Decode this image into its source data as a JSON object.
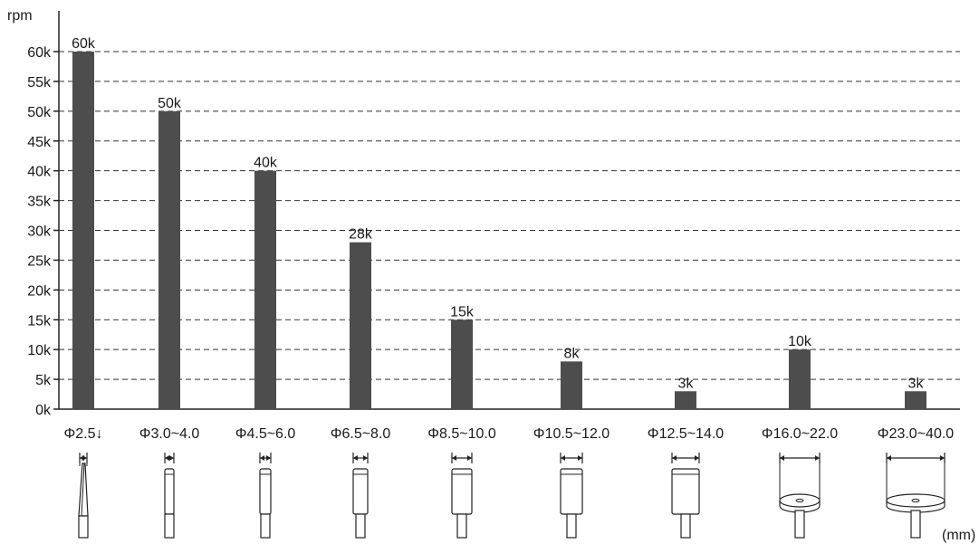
{
  "chart_data": {
    "type": "bar",
    "ylabel": "rpm",
    "xunit": "(mm)",
    "ylim": [
      0,
      60
    ],
    "yticks": [
      0,
      5,
      10,
      15,
      20,
      25,
      30,
      35,
      40,
      45,
      50,
      55,
      60
    ],
    "ytick_labels": [
      "0k",
      "5k",
      "10k",
      "15k",
      "20k",
      "25k",
      "30k",
      "35k",
      "40k",
      "45k",
      "50k",
      "55k",
      "60k"
    ],
    "grid": "horizontal-dashed",
    "categories": [
      "Φ2.5↓",
      "Φ3.0~4.0",
      "Φ4.5~6.0",
      "Φ6.5~8.0",
      "Φ8.5~10.0",
      "Φ10.5~12.0",
      "Φ12.5~14.0",
      "Φ16.0~22.0",
      "Φ23.0~40.0"
    ],
    "values": [
      60,
      50,
      40,
      28,
      15,
      8,
      3,
      10,
      3
    ],
    "data_labels": [
      "60k",
      "50k",
      "40k",
      "28k",
      "15k",
      "8k",
      "3k",
      "10k",
      "3k"
    ],
    "bar_color": "#4d4d4d",
    "tool_icons": [
      "drill-bit-icon",
      "burr-shank-icon",
      "burr-shank-icon",
      "burr-shank-icon",
      "burr-shank-icon",
      "burr-shank-icon",
      "burr-shank-icon",
      "grinding-disc-icon",
      "grinding-disc-icon"
    ]
  }
}
